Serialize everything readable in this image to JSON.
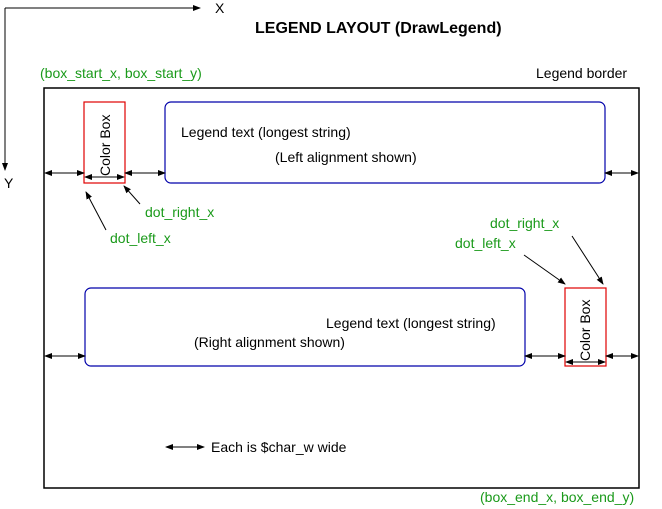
{
  "title": "LEGEND LAYOUT (DrawLegend)",
  "axes": {
    "x_label": "X",
    "y_label": "Y"
  },
  "legend_border_label": "Legend border",
  "box_start_label": "(box_start_x, box_start_y)",
  "box_end_label": "(box_end_x, box_end_y)",
  "top_entry": {
    "color_box_label": "Color Box",
    "text_line1": "Legend text (longest string)",
    "text_line2": "(Left alignment shown)",
    "dot_right_label": "dot_right_x",
    "dot_left_label": "dot_left_x"
  },
  "bottom_entry": {
    "color_box_label": "Color Box",
    "text_line1": "Legend text (longest string)",
    "text_line2": "(Right alignment shown)",
    "dot_right_label": "dot_right_x",
    "dot_left_label": "dot_left_x"
  },
  "key_note": "Each is $char_w wide",
  "colors": {
    "label_green": "#1a9a1a",
    "color_box": "#e00000",
    "text_box": "#0000aa"
  }
}
